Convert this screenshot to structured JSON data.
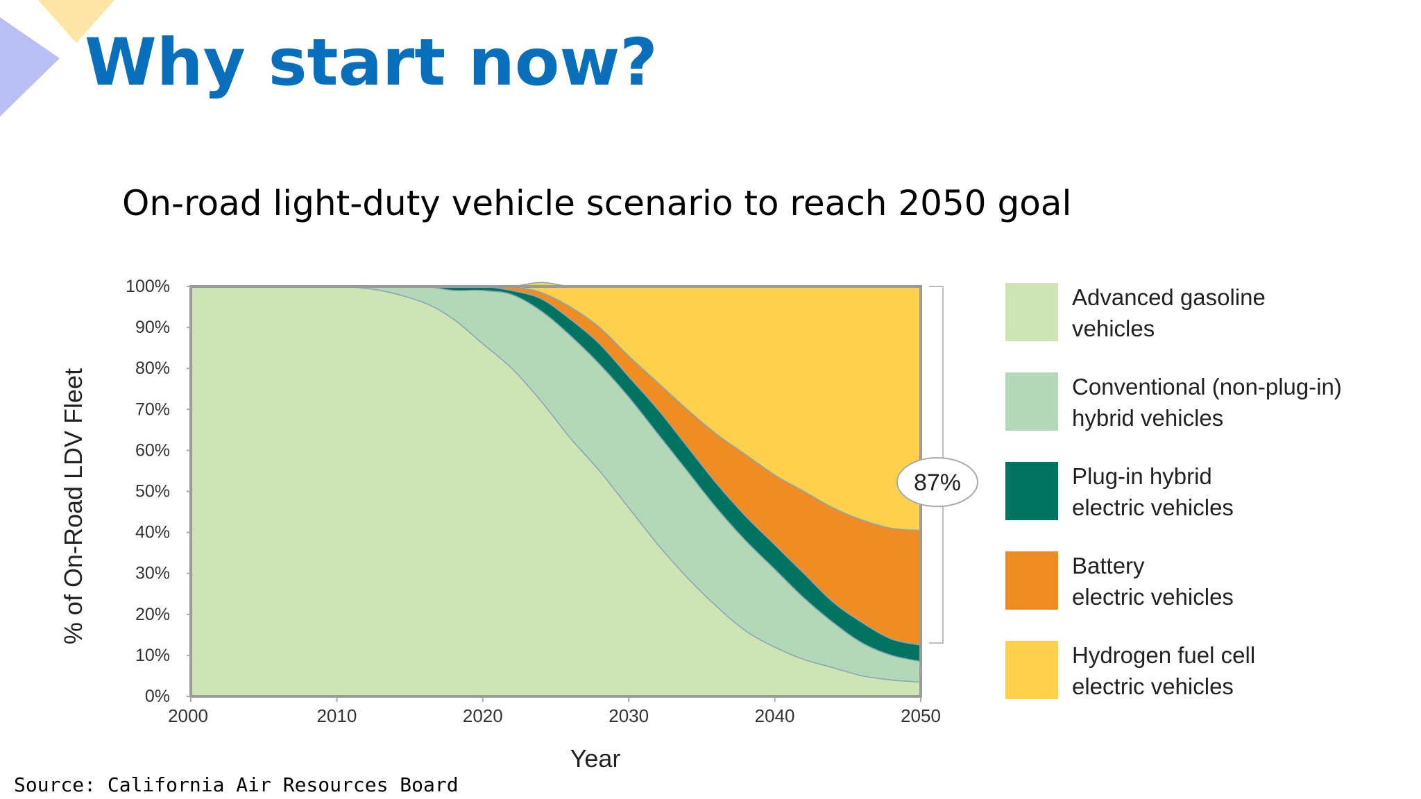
{
  "slide": {
    "title": "Why start now?",
    "subtitle": "On-road light-duty vehicle scenario to reach 2050 goal",
    "source": "Source: California Air Resources Board"
  },
  "chart_data": {
    "type": "area",
    "stacked": true,
    "x": [
      2000,
      2005,
      2010,
      2013,
      2016,
      2018,
      2020,
      2022,
      2024,
      2026,
      2028,
      2030,
      2032,
      2034,
      2036,
      2038,
      2040,
      2042,
      2044,
      2046,
      2048,
      2050
    ],
    "series": [
      {
        "name": "Advanced gasoline vehicles",
        "color": "#cfe4b4",
        "values": [
          100,
          100,
          100,
          99,
          96,
          92,
          86,
          80,
          72,
          63,
          55,
          46,
          37,
          29,
          22,
          16,
          12,
          9,
          7,
          5,
          4,
          3.5
        ]
      },
      {
        "name": "Conventional (non-plug-in) hybrid vehicles",
        "color": "#b2d8b8",
        "values": [
          0,
          0,
          0,
          1,
          4,
          7,
          13,
          18,
          22,
          25,
          26,
          27,
          27,
          26,
          24,
          22,
          19,
          15,
          11,
          8,
          6,
          5
        ]
      },
      {
        "name": "Plug-in hybrid electric vehicles",
        "color": "#007461",
        "values": [
          0,
          0,
          0,
          0,
          0,
          1,
          1,
          1,
          3,
          4,
          5,
          5,
          6,
          6,
          6,
          6,
          6,
          6,
          5,
          5,
          4,
          4
        ]
      },
      {
        "name": "Battery electric vehicles",
        "color": "#f08c24",
        "values": [
          0,
          0,
          0,
          0,
          0,
          0,
          0,
          1,
          1.5,
          3,
          4,
          5,
          6.5,
          9,
          12,
          15,
          17,
          20,
          23,
          25,
          27,
          28
        ]
      },
      {
        "name": "Hydrogen fuel cell electric vehicles",
        "color": "#fdd04e",
        "values": [
          0,
          0,
          0,
          0,
          0,
          0,
          0,
          0,
          2.5,
          5,
          10,
          17,
          23.5,
          30,
          36,
          41,
          46,
          50,
          54,
          57,
          59,
          59.5
        ]
      }
    ],
    "legend_entries": [
      [
        "Advanced gasoline",
        "vehicles"
      ],
      [
        "Conventional (non-plug-in)",
        "hybrid vehicles"
      ],
      [
        "Plug-in hybrid",
        "electric vehicles"
      ],
      [
        "Battery",
        "electric vehicles"
      ],
      [
        "Hydrogen fuel cell",
        "electric vehicles"
      ]
    ],
    "xlabel": "Year",
    "ylabel": "% of On-Road LDV Fleet",
    "xlim": [
      2000,
      2050
    ],
    "ylim": [
      0,
      100
    ],
    "x_ticks": [
      2000,
      2010,
      2020,
      2030,
      2040,
      2050
    ],
    "x_tick_labels": [
      "2000",
      "2010",
      "2020",
      "2030",
      "2040",
      "2050"
    ],
    "y_ticks": [
      0,
      10,
      20,
      30,
      40,
      50,
      60,
      70,
      80,
      90,
      100
    ],
    "y_tick_labels": [
      "0%",
      "10%",
      "20%",
      "30%",
      "40%",
      "50%",
      "60%",
      "70%",
      "80%",
      "90%",
      "100%"
    ],
    "grid": false,
    "legend_position": "right",
    "annotation": {
      "text": "87%",
      "year": 2050,
      "y_range": [
        13,
        100
      ]
    }
  }
}
